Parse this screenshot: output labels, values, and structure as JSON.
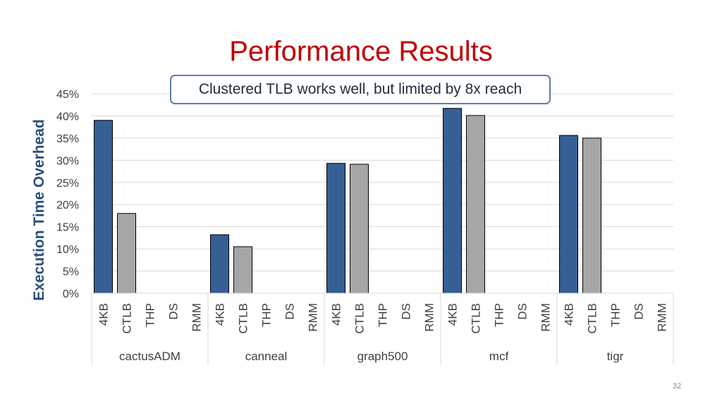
{
  "slide": {
    "title": "Performance Results",
    "callout": "Clustered TLB works well, but limited by 8x reach",
    "page_number": "32"
  },
  "colors": {
    "title": "#c00000",
    "series_4kb": "#365f94",
    "series_ctlb": "#a6a6a6",
    "ylabel": "#2e4f7a"
  },
  "chart_data": {
    "type": "bar",
    "title": "",
    "xlabel": "",
    "ylabel": "Execution Time Overhead",
    "ylim": [
      0,
      45
    ],
    "yticks": [
      "0%",
      "5%",
      "10%",
      "15%",
      "20%",
      "25%",
      "30%",
      "35%",
      "40%",
      "45%"
    ],
    "grid": true,
    "legend": "none",
    "subcategories": [
      "4KB",
      "CTLB",
      "THP",
      "DS",
      "RMM"
    ],
    "groups": [
      {
        "name": "cactusADM",
        "values": {
          "4KB": 39,
          "CTLB": 18
        }
      },
      {
        "name": "canneal",
        "values": {
          "4KB": 13.2,
          "CTLB": 10.5
        }
      },
      {
        "name": "graph500",
        "values": {
          "4KB": 29.3,
          "CTLB": 29.1
        }
      },
      {
        "name": "mcf",
        "values": {
          "4KB": 41.7,
          "CTLB": 40.1
        }
      },
      {
        "name": "tigr",
        "values": {
          "4KB": 35.6,
          "CTLB": 35
        }
      }
    ]
  }
}
